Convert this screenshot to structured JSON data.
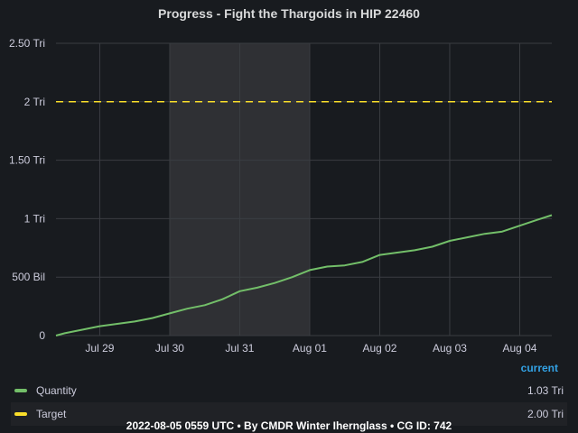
{
  "title": "Progress - Fight the Thargoids in HIP 22460",
  "colors": {
    "quantity": "#73bf69",
    "target": "#fade2a",
    "shade": "#2f3034",
    "grid": "#3a3d42"
  },
  "chart_data": {
    "type": "line",
    "title": "Progress - Fight the Thargoids in HIP 22460",
    "x_ticks": [
      "Jul 29",
      "Jul 30",
      "Jul 31",
      "Aug 01",
      "Aug 02",
      "Aug 03",
      "Aug 04"
    ],
    "y_ticks": [
      "0",
      "500 Bil",
      "1 Tri",
      "1.50 Tri",
      "2 Tri",
      "2.50 Tri"
    ],
    "y_tick_values": [
      0,
      0.5,
      1,
      1.5,
      2,
      2.5
    ],
    "ylim": [
      0,
      2.5
    ],
    "xlim": [
      "2022-07-28T09:00",
      "2022-08-04T11:00"
    ],
    "grid": true,
    "shaded_range": [
      "2022-07-30",
      "2022-08-01"
    ],
    "legend_placement": "bottom",
    "series": [
      {
        "name": "Quantity",
        "unit": "Tri",
        "x": [
          "2022-07-28T09:00",
          "2022-07-28T12:00",
          "2022-07-28T18:00",
          "2022-07-29T00:00",
          "2022-07-29T06:00",
          "2022-07-29T12:00",
          "2022-07-29T18:00",
          "2022-07-30T00:00",
          "2022-07-30T06:00",
          "2022-07-30T12:00",
          "2022-07-30T18:00",
          "2022-07-31T00:00",
          "2022-07-31T06:00",
          "2022-07-31T12:00",
          "2022-07-31T18:00",
          "2022-08-01T00:00",
          "2022-08-01T06:00",
          "2022-08-01T12:00",
          "2022-08-01T18:00",
          "2022-08-02T00:00",
          "2022-08-02T06:00",
          "2022-08-02T12:00",
          "2022-08-02T18:00",
          "2022-08-03T00:00",
          "2022-08-03T06:00",
          "2022-08-03T12:00",
          "2022-08-03T18:00",
          "2022-08-04T00:00",
          "2022-08-04T06:00",
          "2022-08-04T11:00"
        ],
        "y": [
          0.0,
          0.02,
          0.05,
          0.08,
          0.1,
          0.12,
          0.15,
          0.19,
          0.23,
          0.26,
          0.31,
          0.38,
          0.41,
          0.45,
          0.5,
          0.56,
          0.59,
          0.6,
          0.63,
          0.69,
          0.71,
          0.73,
          0.76,
          0.81,
          0.84,
          0.87,
          0.89,
          0.94,
          0.99,
          1.03
        ]
      },
      {
        "name": "Target",
        "unit": "Tri",
        "x": [
          "2022-07-28T09:00",
          "2022-08-04T11:00"
        ],
        "y": [
          2.0,
          2.0
        ]
      }
    ]
  },
  "legend": {
    "header": "current",
    "items": [
      {
        "name": "Quantity",
        "value": "1.03 Tri"
      },
      {
        "name": "Target",
        "value": "2.00 Tri"
      }
    ]
  },
  "footer": "2022-08-05 0559 UTC • By CMDR Winter Ihernglass • CG ID: 742"
}
